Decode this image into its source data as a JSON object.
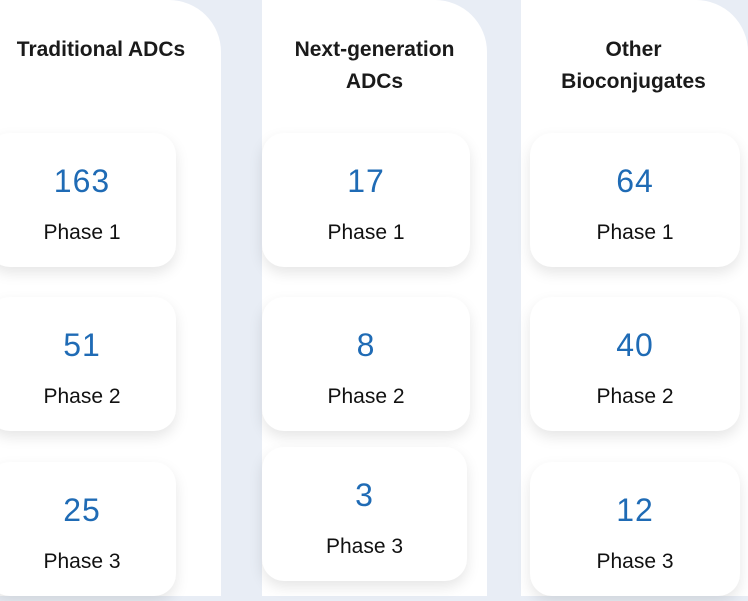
{
  "columns": [
    {
      "title": "Traditional ADCs",
      "cards": [
        {
          "value": "163",
          "label": "Phase 1"
        },
        {
          "value": "51",
          "label": "Phase 2"
        },
        {
          "value": "25",
          "label": "Phase 3"
        }
      ]
    },
    {
      "title": "Next-generation ADCs",
      "cards": [
        {
          "value": "17",
          "label": "Phase 1"
        },
        {
          "value": "8",
          "label": "Phase 2"
        },
        {
          "value": "3",
          "label": "Phase 3"
        }
      ]
    },
    {
      "title": "Other Bioconjugates",
      "cards": [
        {
          "value": "64",
          "label": "Phase 1"
        },
        {
          "value": "40",
          "label": "Phase 2"
        },
        {
          "value": "12",
          "label": "Phase 3"
        }
      ]
    }
  ]
}
